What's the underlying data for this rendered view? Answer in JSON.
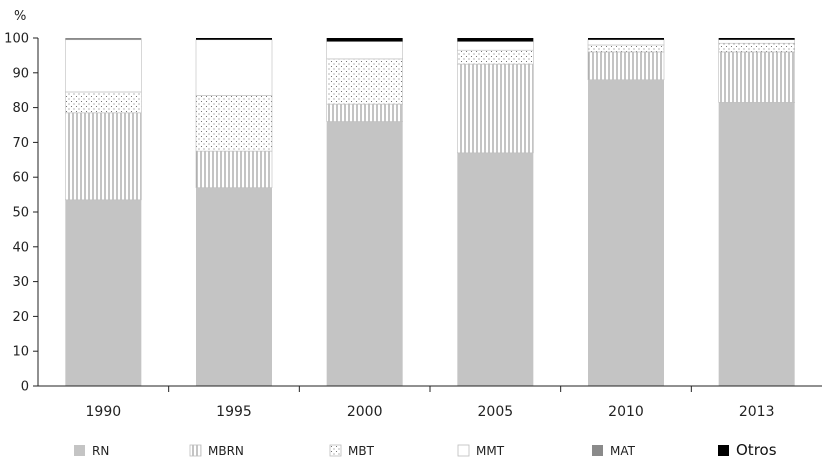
{
  "chart_data": {
    "type": "bar",
    "stacked": true,
    "ylabel": "%",
    "ylim": [
      0,
      100
    ],
    "yticks": [
      0,
      10,
      20,
      30,
      40,
      50,
      60,
      70,
      80,
      90,
      100
    ],
    "categories": [
      "1990",
      "1995",
      "2000",
      "2005",
      "2010",
      "2013"
    ],
    "series": [
      {
        "name": "RN",
        "values": [
          53.5,
          57.0,
          76.0,
          67.0,
          88.0,
          81.5
        ],
        "fill": "#c4c4c4",
        "pattern": "solid"
      },
      {
        "name": "MBRN",
        "values": [
          25.0,
          10.5,
          5.0,
          25.5,
          8.0,
          14.5
        ],
        "fill": "#ffffff",
        "pattern": "vertical-lines"
      },
      {
        "name": "MBT",
        "values": [
          6.0,
          16.0,
          13.0,
          4.0,
          2.0,
          2.5
        ],
        "fill": "#ffffff",
        "pattern": "dots"
      },
      {
        "name": "MMT",
        "values": [
          15.0,
          16.0,
          5.0,
          2.5,
          1.5,
          1.0
        ],
        "fill": "#ffffff",
        "pattern": "blank"
      },
      {
        "name": "MAT",
        "values": [
          0.5,
          0.0,
          0.0,
          0.0,
          0.0,
          0.0
        ],
        "fill": "#8a8a8a",
        "pattern": "solid"
      },
      {
        "name": "Otros",
        "values": [
          0.0,
          0.5,
          1.0,
          1.0,
          0.5,
          0.5
        ],
        "fill": "#000000",
        "pattern": "solid"
      }
    ],
    "legend_position": "bottom",
    "grid": false
  }
}
